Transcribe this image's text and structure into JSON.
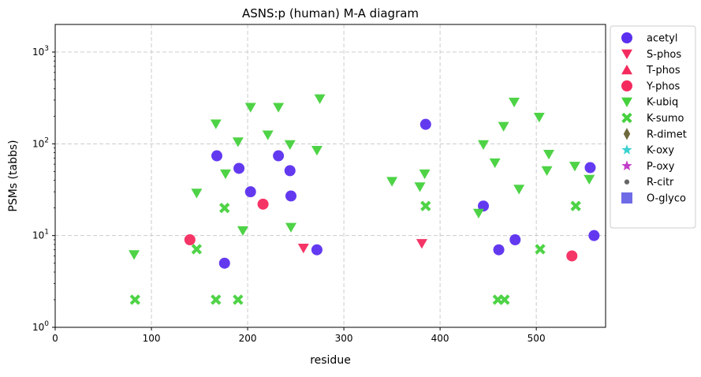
{
  "chart_data": {
    "type": "scatter",
    "title": "ASNS:p (human) M-A diagram",
    "xlabel": "residue",
    "ylabel": "PSMs (tabbs)",
    "xlim": [
      0,
      572
    ],
    "ylim": [
      1,
      2000
    ],
    "yscale": "log",
    "x_ticks": [
      0,
      100,
      200,
      300,
      400,
      500
    ],
    "y_ticks": [
      {
        "value": 1,
        "base": "10",
        "exp": "0"
      },
      {
        "value": 10,
        "base": "10",
        "exp": "1"
      },
      {
        "value": 100,
        "base": "10",
        "exp": "2"
      },
      {
        "value": 1000,
        "base": "10",
        "exp": "3"
      }
    ],
    "grid": true,
    "legend_position": "outside-right",
    "series": [
      {
        "name": "acetyl",
        "marker": "circle",
        "color": "#5b2ff0",
        "points": [
          [
            168,
            74
          ],
          [
            176,
            5
          ],
          [
            191,
            54
          ],
          [
            203,
            30
          ],
          [
            232,
            74
          ],
          [
            244,
            51
          ],
          [
            245,
            27
          ],
          [
            272,
            7
          ],
          [
            385,
            163
          ],
          [
            445,
            21
          ],
          [
            461,
            7
          ],
          [
            478,
            9
          ],
          [
            556,
            55
          ],
          [
            560,
            10
          ]
        ]
      },
      {
        "name": "S-phos",
        "marker": "triangle-down",
        "color": "#f42a5e",
        "points": [
          [
            258,
            7.3
          ],
          [
            381,
            8.2
          ]
        ]
      },
      {
        "name": "T-phos",
        "marker": "triangle-up",
        "color": "#f42a5e",
        "points": []
      },
      {
        "name": "Y-phos",
        "marker": "circle",
        "color": "#f42a5e",
        "points": [
          [
            140,
            9
          ],
          [
            216,
            22
          ],
          [
            537,
            6
          ]
        ]
      },
      {
        "name": "K-ubiq",
        "marker": "triangle-down",
        "color": "#45d13d",
        "points": [
          [
            82,
            6.2
          ],
          [
            147,
            29
          ],
          [
            167,
            165
          ],
          [
            177,
            47
          ],
          [
            190,
            105
          ],
          [
            195,
            11.3
          ],
          [
            203,
            250
          ],
          [
            221,
            125
          ],
          [
            232,
            250
          ],
          [
            244,
            98
          ],
          [
            245,
            12.3
          ],
          [
            272,
            85
          ],
          [
            275,
            310
          ],
          [
            350,
            39
          ],
          [
            379,
            34
          ],
          [
            384,
            47
          ],
          [
            440,
            17.5
          ],
          [
            445,
            98
          ],
          [
            457,
            62
          ],
          [
            466,
            155
          ],
          [
            477,
            285
          ],
          [
            482,
            32
          ],
          [
            503,
            195
          ],
          [
            511,
            51
          ],
          [
            513,
            77
          ],
          [
            540,
            57
          ],
          [
            555,
            41
          ]
        ]
      },
      {
        "name": "K-sumo",
        "marker": "x",
        "color": "#45d13d",
        "points": [
          [
            83,
            2
          ],
          [
            147,
            7.1
          ],
          [
            167,
            2
          ],
          [
            176,
            20
          ],
          [
            190,
            2
          ],
          [
            385,
            21
          ],
          [
            460,
            2
          ],
          [
            467,
            2
          ],
          [
            504,
            7.1
          ],
          [
            541,
            21
          ]
        ]
      },
      {
        "name": "R-dimet",
        "marker": "diamond",
        "color": "#6e6a3d",
        "points": []
      },
      {
        "name": "K-oxy",
        "marker": "star",
        "color": "#3dd1d1",
        "points": []
      },
      {
        "name": "P-oxy",
        "marker": "star",
        "color": "#c23dc9",
        "points": []
      },
      {
        "name": "R-citr",
        "marker": "dot",
        "color": "#666666",
        "points": []
      },
      {
        "name": "O-glyco",
        "marker": "square",
        "color": "#6f6be6",
        "points": []
      }
    ]
  }
}
